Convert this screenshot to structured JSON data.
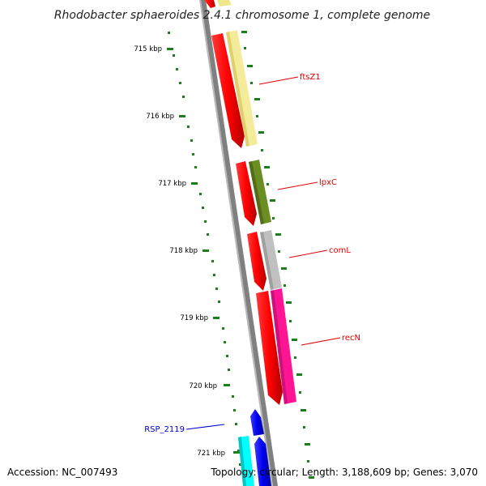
{
  "title": "Rhodobacter sphaeroides 2.4.1 chromosome 1, complete genome",
  "footer": {
    "accession": "Accession: NC_007493",
    "summary": "Topology: circular; Length: 3,188,609 bp; Genes: 3,070"
  },
  "scale": {
    "ticks": [
      {
        "label": "715 kbp"
      },
      {
        "label": "716 kbp"
      },
      {
        "label": "717 kbp"
      },
      {
        "label": "718 kbp"
      },
      {
        "label": "719 kbp"
      },
      {
        "label": "720 kbp"
      },
      {
        "label": "721 kbp"
      }
    ]
  },
  "colors": {
    "backbone": "#808080",
    "tick": "#1a7f1a",
    "forward_gene": "#ff0000",
    "reverse_gene": "#0000ee",
    "ftsZ1": "#f4ec9a",
    "lpxC": "#6b8e23",
    "comL": "#c0c0c0",
    "recN": "#ff1493",
    "cyan_gene": "#00ffff",
    "label_red": "#dd0000",
    "label_blue": "#0000cc"
  },
  "genes": [
    {
      "label": "ftsZ1",
      "strand": "+"
    },
    {
      "label": "lpxC",
      "strand": "+"
    },
    {
      "label": "comL",
      "strand": "+"
    },
    {
      "label": "recN",
      "strand": "+"
    },
    {
      "label": "RSP_2119",
      "strand": "-"
    }
  ]
}
